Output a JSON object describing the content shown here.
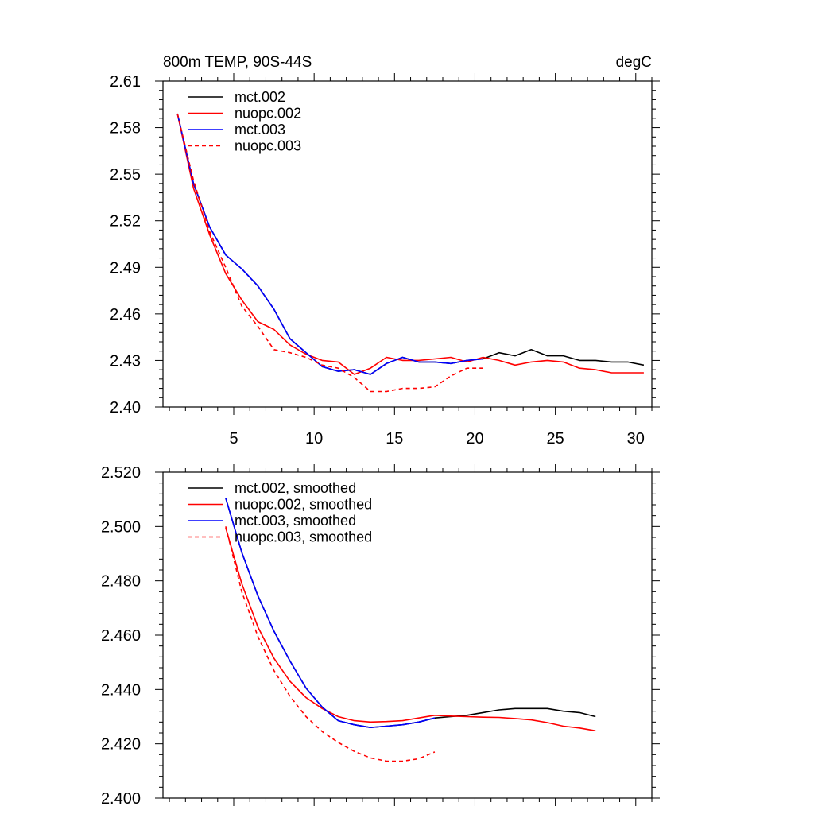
{
  "chart_data": [
    {
      "type": "line",
      "title": "800m TEMP, 90S-44S",
      "units": "degC",
      "xlabel": "",
      "ylabel": "",
      "xlim": [
        0.6,
        31.0
      ],
      "ylim": [
        2.4,
        2.61
      ],
      "xticks": [
        5,
        10,
        15,
        20,
        25,
        30
      ],
      "xtick_labels": [
        "5",
        "10",
        "15",
        "20",
        "25",
        "30"
      ],
      "yticks": [
        2.4,
        2.43,
        2.46,
        2.49,
        2.52,
        2.55,
        2.58,
        2.61
      ],
      "ytick_labels": [
        "2.40",
        "2.43",
        "2.46",
        "2.49",
        "2.52",
        "2.55",
        "2.58",
        "2.61"
      ],
      "legend_position": "top-left",
      "series": [
        {
          "name": "mct.002",
          "color": "#000000",
          "dash": "solid",
          "x": [
            1.5,
            2.5,
            3.5,
            4.5,
            5.5,
            6.5,
            7.5,
            8.5,
            9.5,
            10.5,
            11.5,
            12.5,
            13.5,
            14.5,
            15.5,
            16.5,
            17.5,
            18.5,
            19.5,
            20.5,
            21.5,
            22.5,
            23.5,
            24.5,
            25.5,
            26.5,
            27.5,
            28.5,
            29.5,
            30.5
          ],
          "y": [
            2.589,
            2.544,
            2.516,
            2.498,
            2.489,
            2.478,
            2.463,
            2.444,
            2.435,
            2.426,
            2.423,
            2.424,
            2.421,
            2.428,
            2.432,
            2.429,
            2.429,
            2.428,
            2.43,
            2.431,
            2.435,
            2.433,
            2.437,
            2.433,
            2.433,
            2.43,
            2.43,
            2.429,
            2.429,
            2.427
          ]
        },
        {
          "name": "nuopc.002",
          "color": "#ff0000",
          "dash": "solid",
          "x": [
            1.5,
            2.5,
            3.5,
            4.5,
            5.5,
            6.5,
            7.5,
            8.5,
            9.5,
            10.5,
            11.5,
            12.5,
            13.5,
            14.5,
            15.5,
            16.5,
            17.5,
            18.5,
            19.5,
            20.5,
            21.5,
            22.5,
            23.5,
            24.5,
            25.5,
            26.5,
            27.5,
            28.5,
            29.5,
            30.5
          ],
          "y": [
            2.589,
            2.541,
            2.511,
            2.486,
            2.469,
            2.455,
            2.45,
            2.44,
            2.434,
            2.43,
            2.429,
            2.421,
            2.425,
            2.432,
            2.43,
            2.43,
            2.431,
            2.432,
            2.429,
            2.432,
            2.43,
            2.427,
            2.429,
            2.43,
            2.429,
            2.425,
            2.424,
            2.422,
            2.422,
            2.422
          ]
        },
        {
          "name": "mct.003",
          "color": "#0000ff",
          "dash": "solid",
          "x": [
            1.5,
            2.5,
            3.5,
            4.5,
            5.5,
            6.5,
            7.5,
            8.5,
            9.5,
            10.5,
            11.5,
            12.5,
            13.5,
            14.5,
            15.5,
            16.5,
            17.5,
            18.5,
            19.5,
            20.5
          ],
          "y": [
            2.589,
            2.544,
            2.516,
            2.498,
            2.489,
            2.478,
            2.463,
            2.444,
            2.435,
            2.426,
            2.423,
            2.424,
            2.421,
            2.428,
            2.432,
            2.429,
            2.429,
            2.428,
            2.43,
            2.431
          ]
        },
        {
          "name": "nuopc.003",
          "color": "#ff0000",
          "dash": "dashed",
          "x": [
            1.5,
            2.5,
            3.5,
            4.5,
            5.5,
            6.5,
            7.5,
            8.5,
            9.5,
            10.5,
            11.5,
            12.5,
            13.5,
            14.5,
            15.5,
            16.5,
            17.5,
            18.5,
            19.5,
            20.5
          ],
          "y": [
            2.589,
            2.546,
            2.513,
            2.49,
            2.465,
            2.452,
            2.437,
            2.435,
            2.432,
            2.427,
            2.425,
            2.419,
            2.41,
            2.41,
            2.412,
            2.412,
            2.413,
            2.42,
            2.425,
            2.425
          ]
        }
      ]
    },
    {
      "type": "line",
      "title": "",
      "xlabel": "",
      "ylabel": "",
      "xlim": [
        0.6,
        31.0
      ],
      "ylim": [
        2.4,
        2.52
      ],
      "xticks": [
        5,
        10,
        15,
        20,
        25,
        30
      ],
      "xtick_labels": [],
      "yticks": [
        2.4,
        2.42,
        2.44,
        2.46,
        2.48,
        2.5,
        2.52
      ],
      "ytick_labels": [
        "2.400",
        "2.420",
        "2.440",
        "2.460",
        "2.480",
        "2.500",
        "2.520"
      ],
      "legend_position": "top-left",
      "series": [
        {
          "name": "mct.002, smoothed",
          "color": "#000000",
          "dash": "solid",
          "x": [
            4.5,
            5.5,
            6.5,
            7.5,
            8.5,
            9.5,
            10.5,
            11.5,
            12.5,
            13.5,
            14.5,
            15.5,
            16.5,
            17.5,
            18.5,
            19.5,
            20.5,
            21.5,
            22.5,
            23.5,
            24.5,
            25.5,
            26.5,
            27.5
          ],
          "y": [
            2.5105,
            2.4905,
            2.4745,
            2.4615,
            2.4505,
            2.4405,
            2.4335,
            2.4285,
            2.427,
            2.426,
            2.4265,
            2.427,
            2.428,
            2.4295,
            2.43,
            2.4305,
            2.4315,
            2.4325,
            2.433,
            2.433,
            2.433,
            2.432,
            2.4315,
            2.43
          ]
        },
        {
          "name": "nuopc.002, smoothed",
          "color": "#ff0000",
          "dash": "solid",
          "x": [
            4.5,
            5.5,
            6.5,
            7.5,
            8.5,
            9.5,
            10.5,
            11.5,
            12.5,
            13.5,
            14.5,
            15.5,
            16.5,
            17.5,
            18.5,
            19.5,
            20.5,
            21.5,
            22.5,
            23.5,
            24.5,
            25.5,
            26.5,
            27.5
          ],
          "y": [
            2.4995,
            2.479,
            2.463,
            2.4515,
            2.443,
            2.437,
            2.433,
            2.43,
            2.4285,
            2.428,
            2.4282,
            2.4285,
            2.4295,
            2.4305,
            2.4302,
            2.43,
            2.4298,
            2.4297,
            2.4293,
            2.4288,
            2.4278,
            2.4265,
            2.4258,
            2.4248
          ]
        },
        {
          "name": "mct.003, smoothed",
          "color": "#0000ff",
          "dash": "solid",
          "x": [
            4.5,
            5.5,
            6.5,
            7.5,
            8.5,
            9.5,
            10.5,
            11.5,
            12.5,
            13.5,
            14.5,
            15.5,
            16.5,
            17.5
          ],
          "y": [
            2.5105,
            2.4905,
            2.4745,
            2.4615,
            2.4505,
            2.4405,
            2.4335,
            2.4285,
            2.427,
            2.426,
            2.4265,
            2.427,
            2.428,
            2.4295
          ]
        },
        {
          "name": "nuopc.003, smoothed",
          "color": "#ff0000",
          "dash": "dashed",
          "x": [
            4.5,
            5.5,
            6.5,
            7.5,
            8.5,
            9.5,
            10.5,
            11.5,
            12.5,
            13.5,
            14.5,
            15.5,
            16.5,
            17.5
          ],
          "y": [
            2.5,
            2.476,
            2.4595,
            2.447,
            2.4375,
            2.43,
            2.4245,
            2.4205,
            2.4172,
            2.4148,
            2.4136,
            2.4136,
            2.4145,
            2.417
          ]
        }
      ]
    }
  ]
}
